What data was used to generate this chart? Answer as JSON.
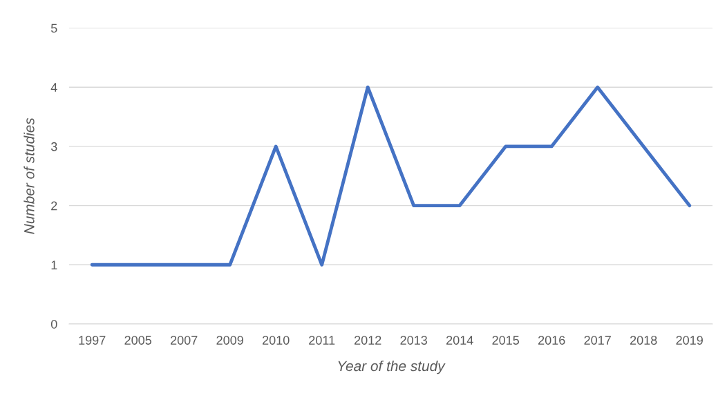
{
  "chart_data": {
    "type": "line",
    "xlabel": "Year of the study",
    "ylabel": "Number of studies",
    "categories": [
      "1997",
      "2005",
      "2007",
      "2009",
      "2010",
      "2011",
      "2012",
      "2013",
      "2014",
      "2015",
      "2016",
      "2017",
      "2018",
      "2019"
    ],
    "series": [
      {
        "color": "#4472c4",
        "values": [
          1,
          1,
          1,
          1,
          3,
          1,
          4,
          2,
          2,
          3,
          3,
          4,
          3,
          2
        ]
      }
    ],
    "ylim": [
      0,
      5
    ],
    "yticks": [
      0,
      1,
      2,
      3,
      4,
      5
    ],
    "grid": "y",
    "marker": "none",
    "line_style": "solid"
  }
}
